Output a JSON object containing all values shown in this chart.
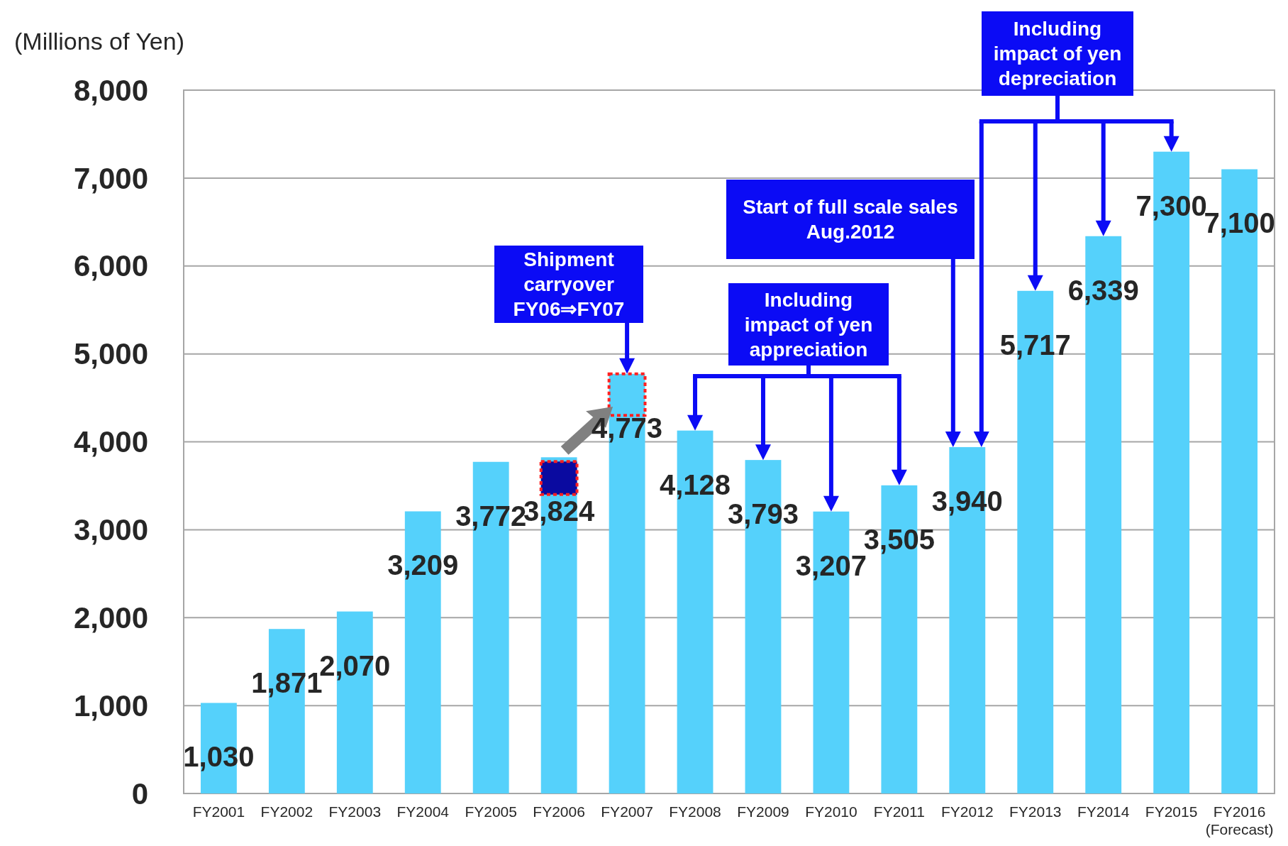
{
  "chart_data": {
    "type": "bar",
    "ylabel": "(Millions of Yen)",
    "categories": [
      "FY2001",
      "FY2002",
      "FY2003",
      "FY2004",
      "FY2005",
      "FY2006",
      "FY2007",
      "FY2008",
      "FY2009",
      "FY2010",
      "FY2011",
      "FY2012",
      "FY2013",
      "FY2014",
      "FY2015",
      "FY2016\n(Forecast)"
    ],
    "values": [
      1030,
      1871,
      2070,
      3209,
      3772,
      3824,
      4773,
      4128,
      3793,
      3207,
      3505,
      3940,
      5717,
      6339,
      7300,
      7100
    ],
    "color": "#55d1fb",
    "value_labels": [
      "1,030",
      "1,871",
      "2,070",
      "3,209",
      "3,772",
      "3,824",
      "4,773",
      "4,128",
      "3,793",
      "3,207",
      "3,505",
      "3,940",
      "5,717",
      "6,339",
      "7,300",
      "7,100"
    ],
    "ylim": [
      0,
      8000
    ],
    "yticks": [
      0,
      {
        "value": 1000,
        "label": "1,000"
      },
      {
        "value": 2000,
        "label": "2,000"
      },
      {
        "value": 3000,
        "label": "3,000"
      },
      {
        "value": 4000,
        "label": "4,000"
      },
      {
        "value": 5000,
        "label": "5,000"
      },
      {
        "value": 6000,
        "label": "6,000"
      },
      {
        "value": 7000,
        "label": "7,000"
      },
      {
        "value": 8000,
        "label": "8,000"
      }
    ],
    "grid": "y",
    "annotations": [
      "Shipment\ncarryover\nFY06⇒FY07",
      "Including\nimpact of yen\nappreciation",
      "Start of full scale sales\nAug.2012",
      "Including\nimpact of yen\ndepreciation"
    ]
  }
}
